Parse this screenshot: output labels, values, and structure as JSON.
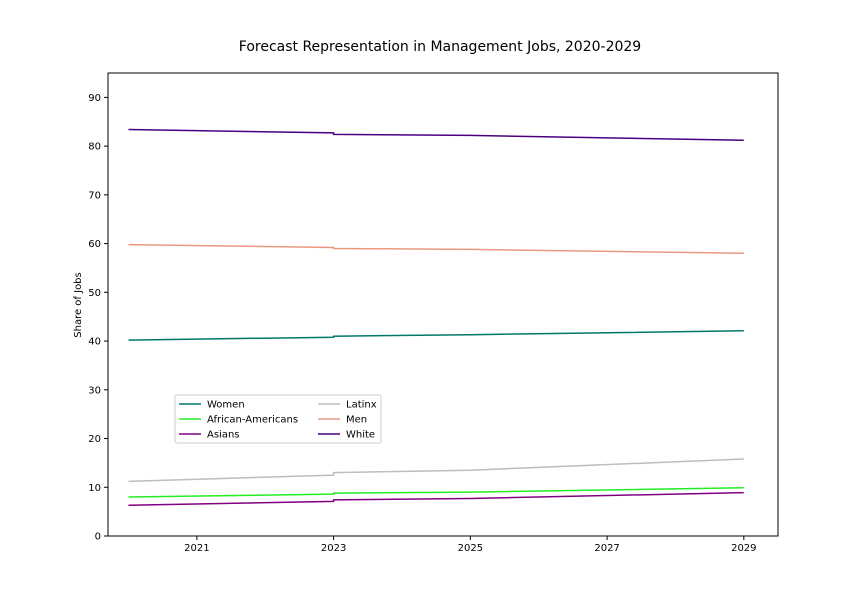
{
  "chart_data": {
    "type": "line",
    "title": "Forecast Representation in Management Jobs, 2020-2029",
    "xlabel": "",
    "ylabel": "Share of Jobs",
    "xlim": [
      2019.7,
      2029.5
    ],
    "ylim": [
      0,
      95
    ],
    "xticks": [
      2021,
      2023,
      2025,
      2027,
      2029
    ],
    "yticks": [
      0,
      10,
      20,
      30,
      40,
      50,
      60,
      70,
      80,
      90
    ],
    "grid": false,
    "legend_position": "lower-left",
    "series": [
      {
        "name": "Women",
        "color": "#00796b",
        "points": [
          [
            2020,
            40.2
          ],
          [
            2023,
            40.8
          ],
          [
            2023,
            41.0
          ],
          [
            2025,
            41.3
          ],
          [
            2029,
            42.1
          ]
        ]
      },
      {
        "name": "African-Americans",
        "color": "#22ee22",
        "points": [
          [
            2020,
            8.0
          ],
          [
            2023,
            8.6
          ],
          [
            2023,
            8.8
          ],
          [
            2025,
            9.0
          ],
          [
            2029,
            9.9
          ]
        ]
      },
      {
        "name": "Asians",
        "color": "#800080",
        "points": [
          [
            2020,
            6.3
          ],
          [
            2023,
            7.1
          ],
          [
            2023,
            7.4
          ],
          [
            2025,
            7.7
          ],
          [
            2029,
            8.9
          ]
        ]
      },
      {
        "name": "Latinx",
        "color": "#bdbdbd",
        "points": [
          [
            2020,
            11.2
          ],
          [
            2023,
            12.5
          ],
          [
            2023,
            13.0
          ],
          [
            2025,
            13.5
          ],
          [
            2029,
            15.8
          ]
        ]
      },
      {
        "name": "Men",
        "color": "#e89a80",
        "points": [
          [
            2020,
            59.8
          ],
          [
            2023,
            59.2
          ],
          [
            2023,
            59.0
          ],
          [
            2025,
            58.8
          ],
          [
            2029,
            58.0
          ]
        ]
      },
      {
        "name": "White",
        "color": "#4b0082",
        "points": [
          [
            2020,
            83.4
          ],
          [
            2023,
            82.7
          ],
          [
            2023,
            82.4
          ],
          [
            2025,
            82.2
          ],
          [
            2029,
            81.2
          ]
        ]
      }
    ]
  }
}
